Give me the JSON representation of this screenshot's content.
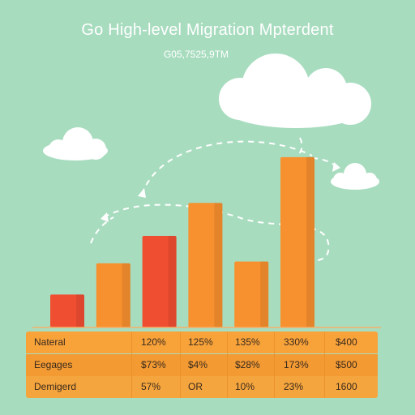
{
  "chart_data": {
    "type": "bar",
    "title": "Go High-level Migration Mpterdent",
    "subtitle": "G05,7525,9TM",
    "xlabel": "",
    "ylabel": "",
    "ylim": [
      0,
      100
    ],
    "values": [
      18,
      35,
      50,
      68,
      36,
      93
    ],
    "bar_colors": [
      "#f04e31",
      "#f7902e",
      "#f04e31",
      "#f7902e",
      "#f7902e",
      "#f7902e"
    ],
    "colors": {
      "background": "#a8dcbf",
      "accent_orange": "#f7902e",
      "accent_red": "#f04e31",
      "cloud": "#ffffff"
    }
  },
  "table": {
    "rows": [
      {
        "label": "Nateral",
        "cells": [
          "120%",
          "125%",
          "135%",
          "330%",
          "$400"
        ]
      },
      {
        "label": "Eegages",
        "cells": [
          "$73%",
          "$4%",
          "$28%",
          "173%",
          "$500"
        ]
      },
      {
        "label": "Demigerd",
        "cells": [
          "57%",
          "OR",
          "10%",
          "23%",
          "1600"
        ]
      }
    ]
  }
}
